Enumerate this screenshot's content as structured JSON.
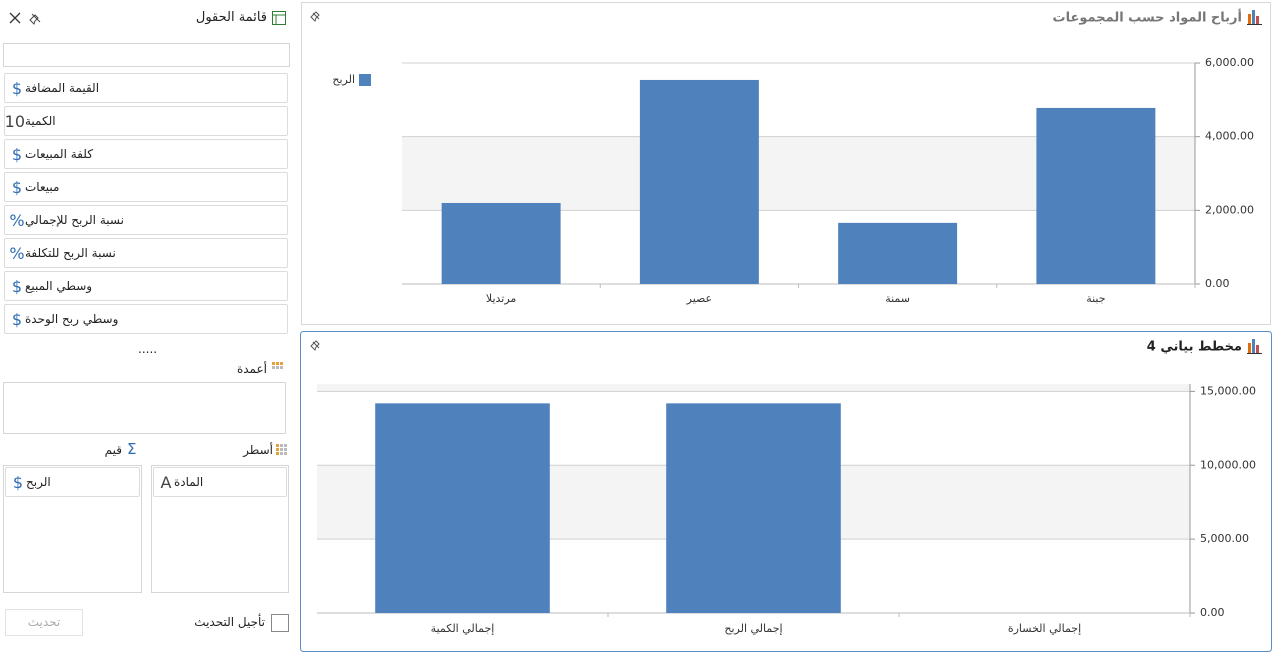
{
  "field_list": {
    "title": "قائمة الحقول",
    "fields": [
      {
        "icon": "$",
        "label": "القيمة المضافة"
      },
      {
        "icon": "10",
        "label": "الكمية"
      },
      {
        "icon": "$",
        "label": "كلفة المبيعات"
      },
      {
        "icon": "$",
        "label": "مبيعات"
      },
      {
        "icon": "%",
        "label": "نسبة الربح للإجمالي"
      },
      {
        "icon": "%",
        "label": "نسبة الربح للتكلفة"
      },
      {
        "icon": "$",
        "label": "وسطي المبيع"
      },
      {
        "icon": "$",
        "label": "وسطي ربح الوحدة"
      }
    ],
    "more": ".....",
    "columns_label": "أعمدة",
    "rows_label": "أسطر",
    "values_icon": "Σ",
    "values_label": "قيم",
    "rows": [
      {
        "icon": "A",
        "label": "المادة"
      }
    ],
    "values": [
      {
        "icon": "$",
        "label": "الربح"
      }
    ],
    "defer_label": "تأجيل التحديث",
    "update_button": "تحديث"
  },
  "charts": [
    {
      "type": "bar",
      "title": "أرباح المواد حسب المجموعات",
      "categories": [
        "جبنة",
        "سمنة",
        "عصير",
        "مرتديلا"
      ],
      "series": [
        {
          "name": "الربح",
          "color": "#4f81bd",
          "values": [
            4780,
            1660,
            5540,
            2200
          ]
        }
      ],
      "ylim": [
        0,
        6000
      ],
      "yticks": [
        {
          "value": 0,
          "label": "0.00"
        },
        {
          "value": 2000,
          "label": "2,000.00"
        },
        {
          "value": 4000,
          "label": "4,000.00"
        },
        {
          "value": 6000,
          "label": "6,000.00"
        }
      ],
      "grid": true,
      "legend": "top-left"
    },
    {
      "type": "bar",
      "title": "مخطط بياني 4",
      "categories": [
        "إجمالي الخسارة",
        "إجمالي الربح",
        "إجمالي الكمية"
      ],
      "values": [
        0,
        14190,
        14190
      ],
      "color": "#4f81bd",
      "ylim": [
        0,
        15500
      ],
      "yticks": [
        {
          "value": 0,
          "label": "0.00"
        },
        {
          "value": 5000,
          "label": "5,000.00"
        },
        {
          "value": 10000,
          "label": "10,000.00"
        },
        {
          "value": 15000,
          "label": "15,000.00"
        }
      ],
      "grid": true
    }
  ]
}
